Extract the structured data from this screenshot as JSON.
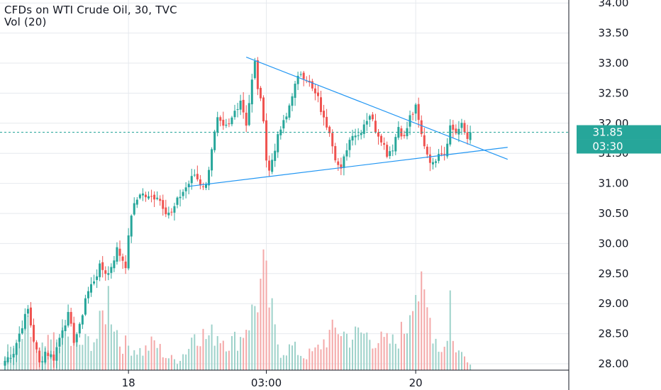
{
  "legend": {
    "title": "CFDs on WTI Crude Oil, 30, TVC",
    "volume": "Vol (20)"
  },
  "colors": {
    "up": "#26a69a",
    "down": "#ef5350",
    "vol_up": "#9ed2ca",
    "vol_down": "#f4a8a8",
    "trendline": "#2196f3",
    "grid": "#e6e9ee",
    "price_line": "#26a69a",
    "badge": "#26a69a"
  },
  "price_badge": {
    "price": "31.85",
    "countdown": "03:30",
    "value": 31.85
  },
  "chart_data": {
    "type": "candlestick",
    "title": "CFDs on WTI Crude Oil, 30, TVC",
    "ylim": [
      27.9,
      34.05
    ],
    "y_ticks": [
      "34.00",
      "33.50",
      "33.00",
      "32.50",
      "32.00",
      "31.50",
      "31.00",
      "30.50",
      "30.00",
      "29.50",
      "29.00",
      "28.50",
      "28.00"
    ],
    "x_ticks": [
      "18",
      "03:00",
      "20"
    ],
    "x_tick_bar_index": [
      43,
      91,
      143
    ],
    "bar_count": 163,
    "last_price": 31.85,
    "close_waypoints": [
      [
        0,
        28.05
      ],
      [
        3,
        28.2
      ],
      [
        6,
        28.65
      ],
      [
        8,
        28.9
      ],
      [
        10,
        28.4
      ],
      [
        12,
        28.0
      ],
      [
        14,
        28.2
      ],
      [
        17,
        28.1
      ],
      [
        20,
        28.6
      ],
      [
        22,
        28.8
      ],
      [
        24,
        28.4
      ],
      [
        26,
        28.6
      ],
      [
        28,
        29.1
      ],
      [
        30,
        29.3
      ],
      [
        33,
        29.6
      ],
      [
        36,
        29.5
      ],
      [
        39,
        29.9
      ],
      [
        42,
        29.65
      ],
      [
        44,
        30.5
      ],
      [
        47,
        30.85
      ],
      [
        50,
        30.75
      ],
      [
        53,
        30.8
      ],
      [
        56,
        30.55
      ],
      [
        58,
        30.5
      ],
      [
        61,
        30.8
      ],
      [
        64,
        31.0
      ],
      [
        66,
        31.15
      ],
      [
        68,
        31.0
      ],
      [
        70,
        30.95
      ],
      [
        72,
        31.6
      ],
      [
        74,
        32.05
      ],
      [
        76,
        31.9
      ],
      [
        78,
        31.95
      ],
      [
        80,
        32.2
      ],
      [
        82,
        32.4
      ],
      [
        84,
        32.0
      ],
      [
        86,
        32.7
      ],
      [
        87,
        33.0
      ],
      [
        88,
        32.6
      ],
      [
        90,
        32.1
      ],
      [
        91,
        31.4
      ],
      [
        92,
        31.2
      ],
      [
        94,
        31.6
      ],
      [
        96,
        31.9
      ],
      [
        98,
        32.1
      ],
      [
        100,
        32.5
      ],
      [
        103,
        32.85
      ],
      [
        105,
        32.75
      ],
      [
        107,
        32.55
      ],
      [
        109,
        32.4
      ],
      [
        111,
        32.05
      ],
      [
        113,
        31.9
      ],
      [
        115,
        31.45
      ],
      [
        116,
        31.3
      ],
      [
        117,
        31.2
      ],
      [
        119,
        31.6
      ],
      [
        121,
        31.85
      ],
      [
        123,
        31.8
      ],
      [
        125,
        32.0
      ],
      [
        127,
        32.15
      ],
      [
        129,
        31.9
      ],
      [
        131,
        31.75
      ],
      [
        133,
        31.5
      ],
      [
        135,
        31.6
      ],
      [
        137,
        31.95
      ],
      [
        139,
        31.75
      ],
      [
        141,
        32.1
      ],
      [
        143,
        32.25
      ],
      [
        145,
        31.8
      ],
      [
        147,
        31.5
      ],
      [
        149,
        31.3
      ],
      [
        151,
        31.55
      ],
      [
        153,
        31.5
      ],
      [
        155,
        31.95
      ],
      [
        157,
        31.85
      ],
      [
        159,
        31.95
      ],
      [
        161,
        31.75
      ],
      [
        162,
        31.85
      ]
    ],
    "volume_waypoints": [
      [
        0,
        0.2
      ],
      [
        4,
        0.25
      ],
      [
        8,
        0.45
      ],
      [
        12,
        0.2
      ],
      [
        16,
        0.3
      ],
      [
        20,
        0.4
      ],
      [
        24,
        0.25
      ],
      [
        28,
        0.3
      ],
      [
        32,
        0.35
      ],
      [
        36,
        0.8
      ],
      [
        40,
        0.3
      ],
      [
        44,
        0.25
      ],
      [
        48,
        0.2
      ],
      [
        52,
        0.3
      ],
      [
        56,
        0.15
      ],
      [
        60,
        0.1
      ],
      [
        64,
        0.25
      ],
      [
        66,
        0.45
      ],
      [
        70,
        0.35
      ],
      [
        74,
        0.4
      ],
      [
        78,
        0.3
      ],
      [
        82,
        0.35
      ],
      [
        84,
        0.5
      ],
      [
        86,
        0.6
      ],
      [
        88,
        0.8
      ],
      [
        90,
        1.0
      ],
      [
        92,
        0.75
      ],
      [
        94,
        0.4
      ],
      [
        96,
        0.2
      ],
      [
        100,
        0.25
      ],
      [
        104,
        0.15
      ],
      [
        108,
        0.2
      ],
      [
        112,
        0.35
      ],
      [
        116,
        0.45
      ],
      [
        120,
        0.35
      ],
      [
        124,
        0.4
      ],
      [
        128,
        0.35
      ],
      [
        132,
        0.3
      ],
      [
        136,
        0.3
      ],
      [
        140,
        0.5
      ],
      [
        142,
        1.0
      ],
      [
        144,
        0.85
      ],
      [
        146,
        0.7
      ],
      [
        148,
        0.55
      ],
      [
        150,
        0.35
      ],
      [
        152,
        0.2
      ],
      [
        154,
        0.4
      ],
      [
        155,
        0.85
      ],
      [
        156,
        0.3
      ],
      [
        158,
        0.2
      ],
      [
        160,
        0.15
      ],
      [
        162,
        0.1
      ]
    ],
    "trendlines": [
      {
        "name": "upper",
        "from": [
          84,
          33.1
        ],
        "to": [
          175,
          31.4
        ]
      },
      {
        "name": "lower",
        "from": [
          64,
          30.95
        ],
        "to": [
          175,
          31.6
        ]
      }
    ]
  }
}
